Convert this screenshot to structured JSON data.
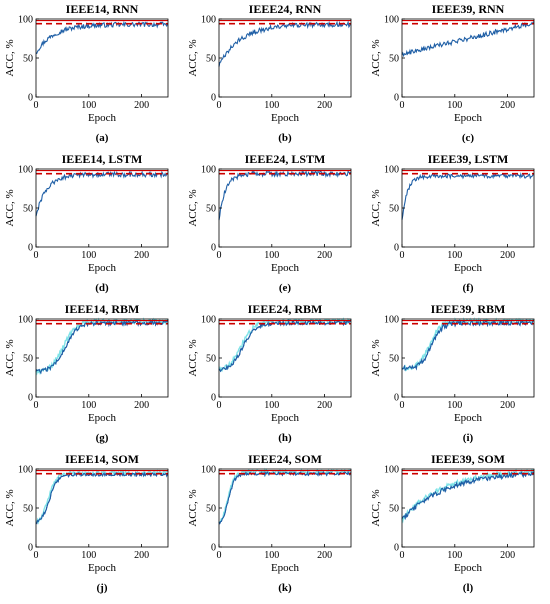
{
  "figure": {
    "colors": {
      "axes": "#000000",
      "reference_red": "#cc0000",
      "series_blue": "#1f5fa6",
      "series_cyan": "#7fe3e8",
      "series_green": "#55c455"
    }
  },
  "chart_data": [
    {
      "type": "line",
      "panel_label": "(a)",
      "title": "IEEE14, RNN",
      "xlabel": "Epoch",
      "ylabel": "ACC, %",
      "xlim": [
        0,
        250
      ],
      "ylim": [
        0,
        100
      ],
      "xticks": [
        "0",
        "100",
        "200"
      ],
      "yticks": [
        "0",
        "50",
        "100"
      ],
      "reference": {
        "solid": 98,
        "dashed": 94
      },
      "series": [
        {
          "kind": "saturating",
          "start": 57,
          "end": 93,
          "rate": 0.03,
          "noise": 3
        }
      ]
    },
    {
      "type": "line",
      "panel_label": "(b)",
      "title": "IEEE24, RNN",
      "xlabel": "Epoch",
      "ylabel": "ACC, %",
      "xlim": [
        0,
        250
      ],
      "ylim": [
        0,
        100
      ],
      "xticks": [
        "0",
        "100",
        "200"
      ],
      "yticks": [
        "0",
        "50",
        "100"
      ],
      "reference": {
        "solid": 98,
        "dashed": 94
      },
      "series": [
        {
          "kind": "saturating",
          "start": 40,
          "end": 93,
          "rate": 0.025,
          "noise": 3
        }
      ]
    },
    {
      "type": "line",
      "panel_label": "(c)",
      "title": "IEEE39, RNN",
      "xlabel": "Epoch",
      "ylabel": "ACC, %",
      "xlim": [
        0,
        250
      ],
      "ylim": [
        0,
        100
      ],
      "xticks": [
        "0",
        "100",
        "200"
      ],
      "yticks": [
        "0",
        "50",
        "100"
      ],
      "reference": {
        "solid": 98,
        "dashed": 94
      },
      "series": [
        {
          "kind": "linear",
          "start": 55,
          "end": 95,
          "noise": 3
        }
      ]
    },
    {
      "type": "line",
      "panel_label": "(d)",
      "title": "IEEE14, LSTM",
      "xlabel": "Epoch",
      "ylabel": "ACC, %",
      "xlim": [
        0,
        250
      ],
      "ylim": [
        0,
        100
      ],
      "xticks": [
        "0",
        "100",
        "200"
      ],
      "yticks": [
        "0",
        "50",
        "100"
      ],
      "reference": {
        "solid": 98,
        "dashed": 94
      },
      "series": [
        {
          "kind": "saturating",
          "start": 40,
          "end": 93,
          "rate": 0.05,
          "noise": 3
        }
      ]
    },
    {
      "type": "line",
      "panel_label": "(e)",
      "title": "IEEE24, LSTM",
      "xlabel": "Epoch",
      "ylabel": "ACC, %",
      "xlim": [
        0,
        250
      ],
      "ylim": [
        0,
        100
      ],
      "xticks": [
        "0",
        "100",
        "200"
      ],
      "yticks": [
        "0",
        "50",
        "100"
      ],
      "reference": {
        "solid": 98,
        "dashed": 94
      },
      "series": [
        {
          "kind": "saturating",
          "start": 35,
          "end": 94,
          "rate": 0.08,
          "noise": 3
        }
      ]
    },
    {
      "type": "line",
      "panel_label": "(f)",
      "title": "IEEE39, LSTM",
      "xlabel": "Epoch",
      "ylabel": "ACC, %",
      "xlim": [
        0,
        250
      ],
      "ylim": [
        0,
        100
      ],
      "xticks": [
        "0",
        "100",
        "200"
      ],
      "yticks": [
        "0",
        "50",
        "100"
      ],
      "reference": {
        "solid": 98,
        "dashed": 94
      },
      "series": [
        {
          "kind": "saturating",
          "start": 35,
          "end": 91,
          "rate": 0.1,
          "noise": 2.5
        }
      ]
    },
    {
      "type": "line",
      "panel_label": "(g)",
      "title": "IEEE14, RBM",
      "xlabel": "Epoch",
      "ylabel": "ACC, %",
      "xlim": [
        0,
        250
      ],
      "ylim": [
        0,
        100
      ],
      "xticks": [
        "0",
        "100",
        "200"
      ],
      "yticks": [
        "0",
        "50",
        "100"
      ],
      "reference": {
        "solid": 98,
        "dashed": 94
      },
      "series": [
        {
          "kind": "sigmoid",
          "start": 32,
          "end": 95,
          "mid": 55,
          "width": 12,
          "noise": 2.5
        },
        {
          "kind": "sigmoid",
          "start": 32,
          "end": 97,
          "mid": 52,
          "width": 12,
          "noise": 3
        }
      ]
    },
    {
      "type": "line",
      "panel_label": "(h)",
      "title": "IEEE24, RBM",
      "xlabel": "Epoch",
      "ylabel": "ACC, %",
      "xlim": [
        0,
        250
      ],
      "ylim": [
        0,
        100
      ],
      "xticks": [
        "0",
        "100",
        "200"
      ],
      "yticks": [
        "0",
        "50",
        "100"
      ],
      "reference": {
        "solid": 98,
        "dashed": 94
      },
      "series": [
        {
          "kind": "sigmoid",
          "start": 33,
          "end": 95,
          "mid": 45,
          "width": 12,
          "noise": 2.5
        },
        {
          "kind": "sigmoid",
          "start": 33,
          "end": 97,
          "mid": 42,
          "width": 12,
          "noise": 3
        }
      ]
    },
    {
      "type": "line",
      "panel_label": "(i)",
      "title": "IEEE39, RBM",
      "xlabel": "Epoch",
      "ylabel": "ACC, %",
      "xlim": [
        0,
        250
      ],
      "ylim": [
        0,
        100
      ],
      "xticks": [
        "0",
        "100",
        "200"
      ],
      "yticks": [
        "0",
        "50",
        "100"
      ],
      "reference": {
        "solid": 98,
        "dashed": 94
      },
      "series": [
        {
          "kind": "sigmoid",
          "start": 36,
          "end": 95,
          "mid": 55,
          "width": 10,
          "noise": 3
        },
        {
          "kind": "sigmoid",
          "start": 36,
          "end": 97,
          "mid": 52,
          "width": 10,
          "noise": 3
        }
      ]
    },
    {
      "type": "line",
      "panel_label": "(j)",
      "title": "IEEE14, SOM",
      "xlabel": "Epoch",
      "ylabel": "ACC, %",
      "xlim": [
        0,
        250
      ],
      "ylim": [
        0,
        100
      ],
      "xticks": [
        "0",
        "100",
        "200"
      ],
      "yticks": [
        "0",
        "50",
        "100"
      ],
      "reference": {
        "solid": 98,
        "dashed": 94
      },
      "series": [
        {
          "kind": "sigmoid",
          "start": 28,
          "end": 93,
          "mid": 25,
          "width": 8,
          "noise": 2
        },
        {
          "kind": "sigmoid",
          "start": 28,
          "end": 95,
          "mid": 23,
          "width": 8,
          "noise": 2.5
        }
      ]
    },
    {
      "type": "line",
      "panel_label": "(k)",
      "title": "IEEE24, SOM",
      "xlabel": "Epoch",
      "ylabel": "ACC, %",
      "xlim": [
        0,
        250
      ],
      "ylim": [
        0,
        100
      ],
      "xticks": [
        "0",
        "100",
        "200"
      ],
      "yticks": [
        "0",
        "50",
        "100"
      ],
      "reference": {
        "solid": 98,
        "dashed": 94
      },
      "series": [
        {
          "kind": "sigmoid",
          "start": 28,
          "end": 94,
          "mid": 18,
          "width": 6,
          "noise": 2
        },
        {
          "kind": "sigmoid",
          "start": 28,
          "end": 96,
          "mid": 17,
          "width": 6,
          "noise": 2.5
        }
      ]
    },
    {
      "type": "line",
      "panel_label": "(l)",
      "title": "IEEE39, SOM",
      "xlabel": "Epoch",
      "ylabel": "ACC, %",
      "xlim": [
        0,
        250
      ],
      "ylim": [
        0,
        100
      ],
      "xticks": [
        "0",
        "100",
        "200"
      ],
      "yticks": [
        "0",
        "50",
        "100"
      ],
      "reference": {
        "solid": 98,
        "dashed": 94
      },
      "series": [
        {
          "kind": "saturating",
          "start": 35,
          "end": 97,
          "rate": 0.012,
          "noise": 3
        },
        {
          "kind": "saturating",
          "start": 35,
          "end": 99,
          "rate": 0.013,
          "noise": 3
        }
      ]
    }
  ]
}
